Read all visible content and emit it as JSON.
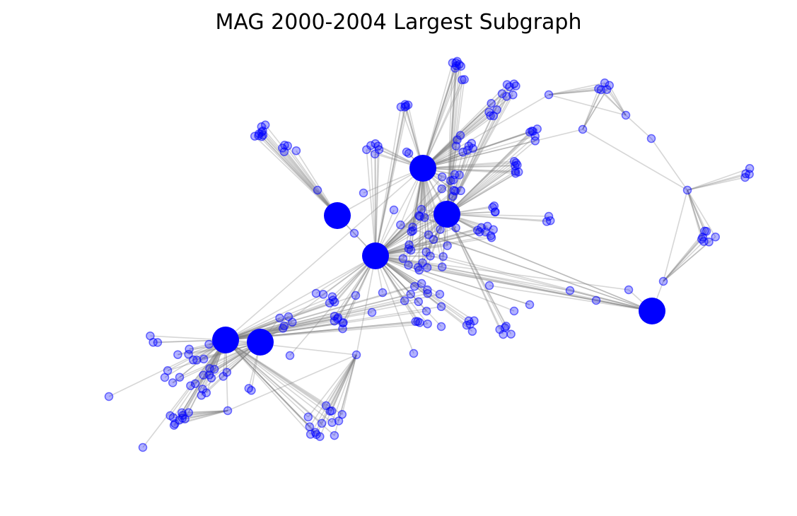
{
  "chart_data": {
    "type": "network",
    "title": "MAG 2000-2004 Largest Subgraph",
    "axes_visible": false,
    "node_color": "#0000ff",
    "edge_color": "#808080"
  }
}
